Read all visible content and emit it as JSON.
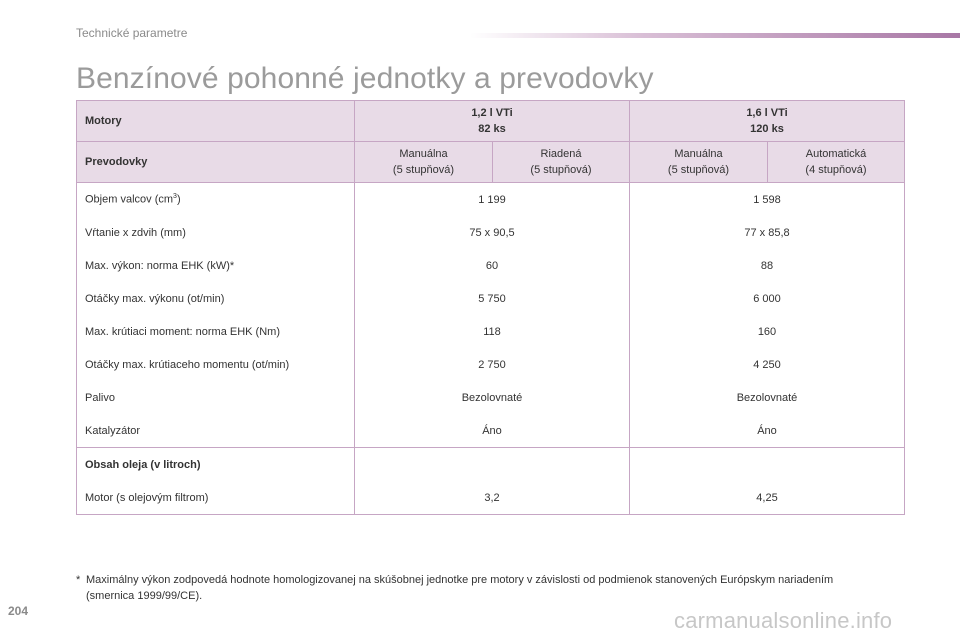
{
  "header": {
    "section": "Technické parametre",
    "title": "Benzínové pohonné jednotky a prevodovky"
  },
  "table": {
    "engines_label": "Motory",
    "engines": [
      {
        "name": "1,2 l VTi",
        "power": "82 ks"
      },
      {
        "name": "1,6 l VTi",
        "power": "120 ks"
      }
    ],
    "gearbox_label": "Prevodovky",
    "gearboxes": [
      {
        "type": "Manuálna",
        "speeds": "(5 stupňová)"
      },
      {
        "type": "Riadená",
        "speeds": "(5 stupňová)"
      },
      {
        "type": "Manuálna",
        "speeds": "(5 stupňová)"
      },
      {
        "type": "Automatická",
        "speeds": "(4 stupňová)"
      }
    ],
    "rows": [
      {
        "label": "Objem valcov (cm",
        "label_sup": "3",
        "label_end": ")",
        "v1": "1 199",
        "v2": "1 598"
      },
      {
        "label": "Vŕtanie x zdvih (mm)",
        "v1": "75 x 90,5",
        "v2": "77 x 85,8"
      },
      {
        "label": "Max. výkon: norma EHK (kW)*",
        "v1": "60",
        "v2": "88"
      },
      {
        "label": "Otáčky max. výkonu (ot/min)",
        "v1": "5 750",
        "v2": "6 000"
      },
      {
        "label": "Max. krútiaci moment: norma EHK (Nm)",
        "v1": "118",
        "v2": "160"
      },
      {
        "label": "Otáčky max. krútiaceho momentu (ot/min)",
        "v1": "2 750",
        "v2": "4 250"
      },
      {
        "label": "Palivo",
        "v1": "Bezolovnaté",
        "v2": "Bezolovnaté"
      },
      {
        "label": "Katalyzátor",
        "v1": "Áno",
        "v2": "Áno"
      }
    ],
    "oil": {
      "heading": "Obsah oleja (v litroch)",
      "label": "Motor (s olejovým filtrom)",
      "v1": "3,2",
      "v2": "4,25"
    }
  },
  "footnote": {
    "marker": "*",
    "text": "Maximálny výkon zodpovedá hodnote homologizovanej na skúšobnej jednotke pre motory v závislosti od podmienok stanovených Európskym nariadením (smernica 1999/99/CE)."
  },
  "page_number": "204",
  "watermark": "carmanualsonline.info"
}
